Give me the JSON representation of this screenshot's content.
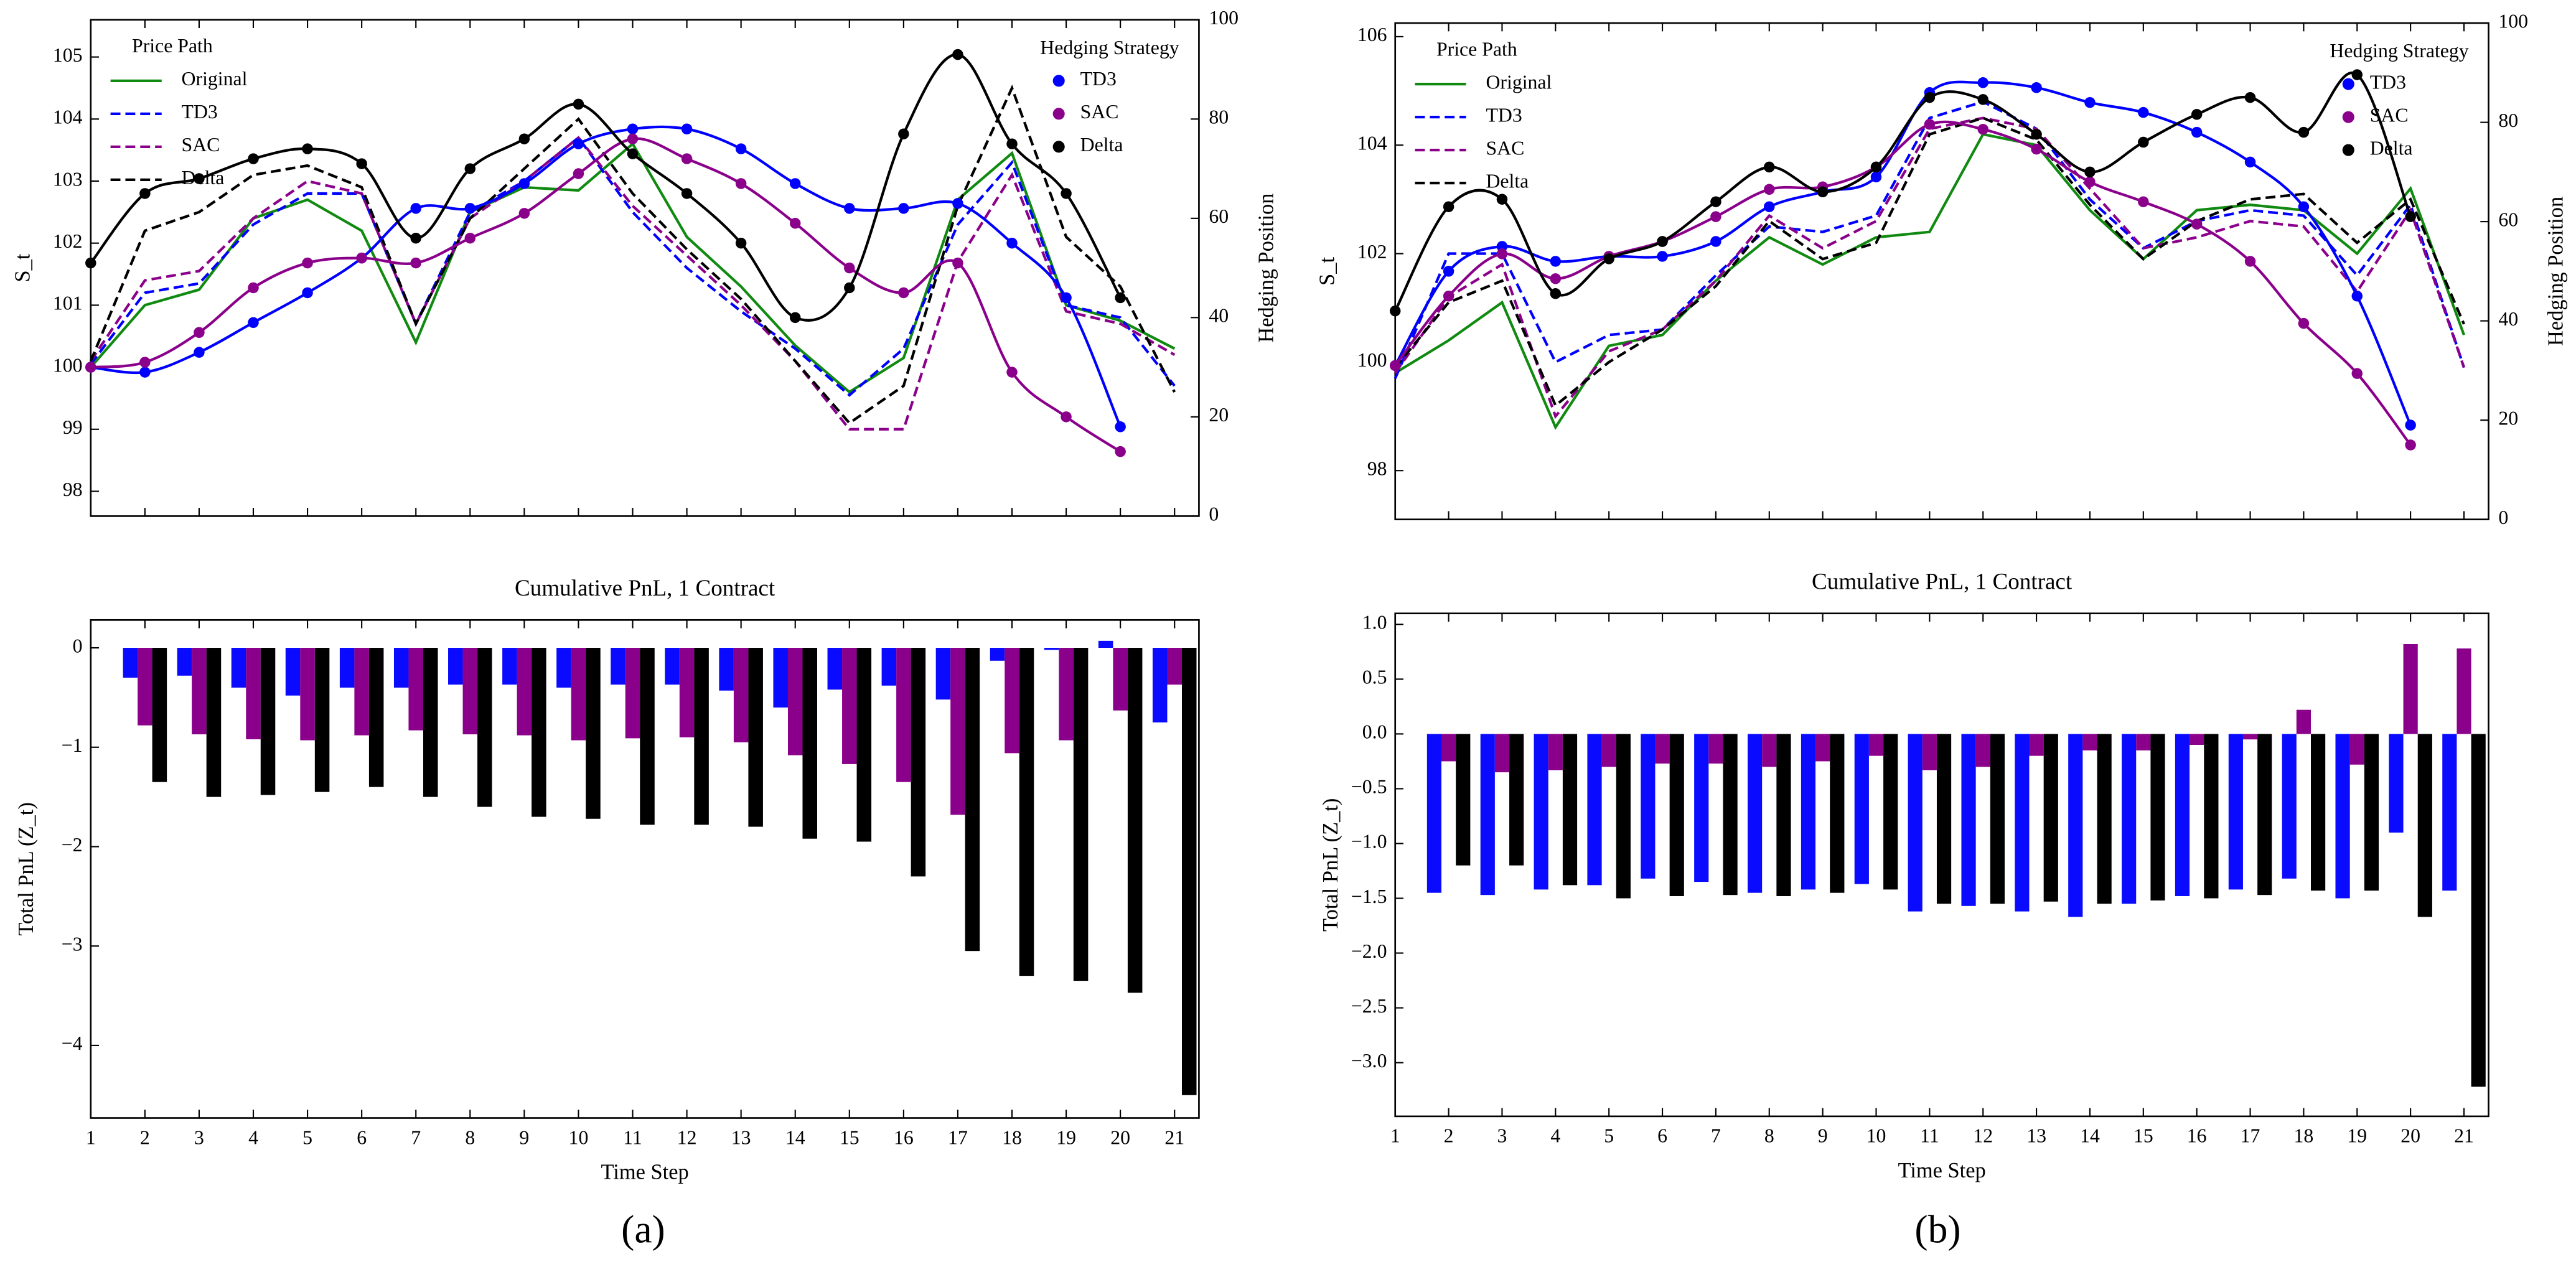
{
  "chart_data": [
    {
      "type": "line",
      "ylabel": "S_t",
      "y2label": "Hedging Position",
      "legend_title": "Price Path",
      "legend": "upper left",
      "legend2_title": "Hedging Strategy",
      "legend2": "upper right",
      "x": [
        1,
        2,
        3,
        4,
        5,
        6,
        7,
        8,
        9,
        10,
        11,
        12,
        13,
        14,
        15,
        16,
        17,
        18,
        19,
        20,
        21
      ],
      "xlim": [
        1,
        21.45
      ],
      "xticks": [
        1,
        2,
        3,
        4,
        5,
        6,
        7,
        8,
        9,
        10,
        11,
        12,
        13,
        14,
        15,
        16,
        17,
        18,
        19,
        20,
        21
      ],
      "ylim": [
        97.6,
        105.6
      ],
      "yticks": [
        98,
        99,
        100,
        101,
        102,
        103,
        104,
        105
      ],
      "y2lim": [
        0,
        100
      ],
      "y2ticks": [
        0,
        20,
        40,
        60,
        80,
        100
      ],
      "series": [
        {
          "name": "Original",
          "color": "#108a10",
          "linestyle": "solid",
          "values": [
            100.0,
            101.0,
            101.25,
            102.4,
            102.7,
            102.2,
            100.4,
            102.5,
            102.9,
            102.85,
            103.6,
            102.1,
            101.3,
            100.35,
            99.6,
            100.15,
            102.7,
            103.45,
            101.0,
            100.75,
            100.3
          ]
        },
        {
          "name": "TD3",
          "color": "#0000ff",
          "linestyle": "dashed",
          "values": [
            100.05,
            101.2,
            101.35,
            102.3,
            102.8,
            102.8,
            100.7,
            102.5,
            103.0,
            103.7,
            102.5,
            101.6,
            100.9,
            100.3,
            99.55,
            100.3,
            102.3,
            103.3,
            101.0,
            100.8,
            99.7
          ]
        },
        {
          "name": "SAC",
          "color": "#8b008b",
          "linestyle": "dashed",
          "values": [
            100.1,
            101.4,
            101.55,
            102.4,
            103.0,
            102.8,
            100.7,
            102.4,
            103.0,
            103.7,
            102.6,
            101.8,
            101.0,
            100.1,
            99.0,
            99.0,
            101.7,
            103.1,
            100.9,
            100.7,
            100.2
          ]
        },
        {
          "name": "Delta",
          "color": "#000000",
          "linestyle": "dashed",
          "values": [
            100.1,
            102.2,
            102.5,
            103.1,
            103.25,
            102.9,
            100.7,
            102.4,
            103.2,
            104.0,
            102.8,
            101.9,
            101.1,
            100.1,
            99.1,
            99.7,
            102.6,
            104.5,
            102.1,
            101.3,
            99.6
          ]
        },
        {
          "name": "TD3",
          "color": "#0000ff",
          "axis": "y2",
          "values": [
            30,
            29,
            33,
            39,
            45,
            52,
            62,
            62,
            67,
            75,
            78,
            78,
            74,
            67,
            62,
            62,
            63,
            55,
            44,
            18,
            null
          ]
        },
        {
          "name": "SAC",
          "color": "#8b008b",
          "axis": "y2",
          "values": [
            30,
            31,
            37,
            46,
            51,
            52,
            51,
            56,
            61,
            69,
            76,
            72,
            67,
            59,
            50,
            45,
            51,
            29,
            20,
            13,
            null
          ]
        },
        {
          "name": "Delta",
          "color": "#000000",
          "axis": "y2",
          "values": [
            51,
            65,
            68,
            72,
            74,
            71,
            56,
            70,
            76,
            83,
            73,
            65,
            55,
            40,
            46,
            77,
            93,
            75,
            65,
            44,
            null
          ]
        }
      ]
    },
    {
      "type": "bar",
      "title": "Cumulative PnL, 1 Contract",
      "xlabel": "Time Step",
      "ylabel": "Total PnL (Z_t)",
      "x": [
        1,
        2,
        3,
        4,
        5,
        6,
        7,
        8,
        9,
        10,
        11,
        12,
        13,
        14,
        15,
        16,
        17,
        18,
        19,
        20,
        21
      ],
      "xlim": [
        1,
        21.45
      ],
      "xticks": [
        1,
        2,
        3,
        4,
        5,
        6,
        7,
        8,
        9,
        10,
        11,
        12,
        13,
        14,
        15,
        16,
        17,
        18,
        19,
        20,
        21
      ],
      "ylim": [
        -4.73,
        0.28
      ],
      "yticks": [
        0,
        {
          "value": -1,
          "label": "−1"
        },
        {
          "value": -2,
          "label": "−2"
        },
        {
          "value": -3,
          "label": "−3"
        },
        {
          "value": -4,
          "label": "−4"
        }
      ],
      "series": [
        {
          "name": "TD3",
          "color": "#0a0aff",
          "values": [
            0,
            -0.3,
            -0.28,
            -0.4,
            -0.48,
            -0.4,
            -0.4,
            -0.37,
            -0.37,
            -0.4,
            -0.37,
            -0.37,
            -0.43,
            -0.6,
            -0.42,
            -0.38,
            -0.52,
            -0.13,
            -0.02,
            0.07,
            -0.75
          ]
        },
        {
          "name": "SAC",
          "color": "#8b008b",
          "values": [
            0,
            -0.78,
            -0.87,
            -0.92,
            -0.93,
            -0.88,
            -0.83,
            -0.87,
            -0.88,
            -0.93,
            -0.91,
            -0.9,
            -0.95,
            -1.08,
            -1.17,
            -1.35,
            -1.68,
            -1.06,
            -0.93,
            -0.63,
            -0.37
          ]
        },
        {
          "name": "Delta",
          "color": "#000000",
          "values": [
            0,
            -1.35,
            -1.5,
            -1.48,
            -1.45,
            -1.4,
            -1.5,
            -1.6,
            -1.7,
            -1.72,
            -1.78,
            -1.78,
            -1.8,
            -1.92,
            -1.95,
            -2.3,
            -3.05,
            -3.3,
            -3.35,
            -3.47,
            -4.5
          ]
        }
      ]
    },
    {
      "type": "line",
      "ylabel": "S_t",
      "y2label": "Hedging Position",
      "legend_title": "Price Path",
      "legend": "upper left",
      "legend2_title": "Hedging Strategy",
      "legend2": "upper right",
      "x": [
        1,
        2,
        3,
        4,
        5,
        6,
        7,
        8,
        9,
        10,
        11,
        12,
        13,
        14,
        15,
        16,
        17,
        18,
        19,
        20,
        21
      ],
      "xlim": [
        1,
        21.46
      ],
      "xticks": [
        1,
        2,
        3,
        4,
        5,
        6,
        7,
        8,
        9,
        10,
        11,
        12,
        13,
        14,
        15,
        16,
        17,
        18,
        19,
        20,
        21
      ],
      "ylim": [
        97.1,
        106.25
      ],
      "yticks": [
        98,
        100,
        102,
        104,
        106
      ],
      "y2lim": [
        0,
        100
      ],
      "y2ticks": [
        0,
        20,
        40,
        60,
        80,
        100
      ],
      "series": [
        {
          "name": "Original",
          "color": "#108a10",
          "linestyle": "solid",
          "values": [
            99.8,
            100.4,
            101.1,
            98.8,
            100.3,
            100.5,
            101.5,
            102.3,
            101.8,
            102.3,
            102.4,
            104.2,
            104.0,
            102.8,
            101.9,
            102.8,
            102.9,
            102.8,
            102.0,
            103.2,
            100.5
          ]
        },
        {
          "name": "TD3",
          "color": "#0000ff",
          "linestyle": "dashed",
          "values": [
            99.7,
            102.0,
            102.0,
            100.0,
            100.5,
            100.6,
            101.6,
            102.5,
            102.4,
            102.7,
            104.5,
            104.8,
            104.3,
            103.0,
            102.1,
            102.6,
            102.8,
            102.7,
            101.6,
            102.9,
            99.9
          ]
        },
        {
          "name": "SAC",
          "color": "#8b008b",
          "linestyle": "dashed",
          "values": [
            99.8,
            101.2,
            101.8,
            99.0,
            100.2,
            100.6,
            101.5,
            102.7,
            102.1,
            102.6,
            104.3,
            104.5,
            104.3,
            103.2,
            102.1,
            102.3,
            102.6,
            102.5,
            101.3,
            102.8,
            99.9
          ]
        },
        {
          "name": "Delta",
          "color": "#000000",
          "linestyle": "dashed",
          "values": [
            99.9,
            101.1,
            101.5,
            99.2,
            100.0,
            100.6,
            101.4,
            102.6,
            101.9,
            102.2,
            104.2,
            104.5,
            104.1,
            102.9,
            101.9,
            102.6,
            103.0,
            103.1,
            102.2,
            103.0,
            100.7
          ]
        },
        {
          "name": "TD3",
          "color": "#0000ff",
          "axis": "y2",
          "values": [
            31,
            50,
            55,
            52,
            53,
            53,
            56,
            63,
            66,
            69,
            86,
            88,
            87,
            84,
            82,
            78,
            72,
            63,
            45,
            19,
            null
          ]
        },
        {
          "name": "SAC",
          "color": "#8b008b",
          "axis": "y2",
          "values": [
            31,
            45,
            53.5,
            48.5,
            53,
            56,
            61,
            66.5,
            67,
            71,
            79.6,
            78.6,
            74.6,
            68,
            64,
            59.5,
            52,
            39.5,
            29.4,
            15,
            null
          ]
        },
        {
          "name": "Delta",
          "color": "#000000",
          "axis": "y2",
          "values": [
            42,
            63,
            64.5,
            45.5,
            52.5,
            56,
            64,
            71,
            66,
            71,
            85,
            84.6,
            77.6,
            70,
            76,
            81.6,
            85,
            78,
            89.6,
            61,
            null
          ]
        }
      ]
    },
    {
      "type": "bar",
      "title": "Cumulative PnL, 1 Contract",
      "xlabel": "Time Step",
      "ylabel": "Total PnL (Z_t)",
      "x": [
        1,
        2,
        3,
        4,
        5,
        6,
        7,
        8,
        9,
        10,
        11,
        12,
        13,
        14,
        15,
        16,
        17,
        18,
        19,
        20,
        21
      ],
      "xlim": [
        1,
        21.46
      ],
      "xticks": [
        1,
        2,
        3,
        4,
        5,
        6,
        7,
        8,
        9,
        10,
        11,
        12,
        13,
        14,
        15,
        16,
        17,
        18,
        19,
        20,
        21
      ],
      "ylim": [
        -3.49,
        1.1
      ],
      "yticks": [
        {
          "value": 1,
          "label": "1.0"
        },
        0.5,
        {
          "value": 0,
          "label": "0.0"
        },
        {
          "value": -0.5,
          "label": "−0.5"
        },
        {
          "value": -1,
          "label": "−1.0"
        },
        {
          "value": -1.5,
          "label": "−1.5"
        },
        {
          "value": -2,
          "label": "−2.0"
        },
        {
          "value": -2.5,
          "label": "−2.5"
        },
        {
          "value": -3,
          "label": "−3.0"
        }
      ],
      "series": [
        {
          "name": "TD3",
          "color": "#0a0aff",
          "values": [
            0,
            -1.45,
            -1.47,
            -1.42,
            -1.38,
            -1.32,
            -1.35,
            -1.45,
            -1.42,
            -1.37,
            -1.62,
            -1.57,
            -1.62,
            -1.67,
            -1.55,
            -1.48,
            -1.42,
            -1.32,
            -1.5,
            -0.9,
            -1.43
          ]
        },
        {
          "name": "SAC",
          "color": "#8b008b",
          "values": [
            0,
            -0.25,
            -0.35,
            -0.33,
            -0.3,
            -0.27,
            -0.27,
            -0.3,
            -0.25,
            -0.2,
            -0.33,
            -0.3,
            -0.2,
            -0.15,
            -0.15,
            -0.1,
            -0.05,
            0.22,
            -0.28,
            0.82,
            0.78
          ]
        },
        {
          "name": "Delta",
          "color": "#000000",
          "values": [
            0,
            -1.2,
            -1.2,
            -1.38,
            -1.5,
            -1.48,
            -1.47,
            -1.48,
            -1.45,
            -1.42,
            -1.55,
            -1.55,
            -1.53,
            -1.55,
            -1.52,
            -1.5,
            -1.47,
            -1.43,
            -1.43,
            -1.67,
            -3.22
          ]
        }
      ]
    }
  ],
  "panel_labels": [
    "(a)",
    "(b)"
  ]
}
